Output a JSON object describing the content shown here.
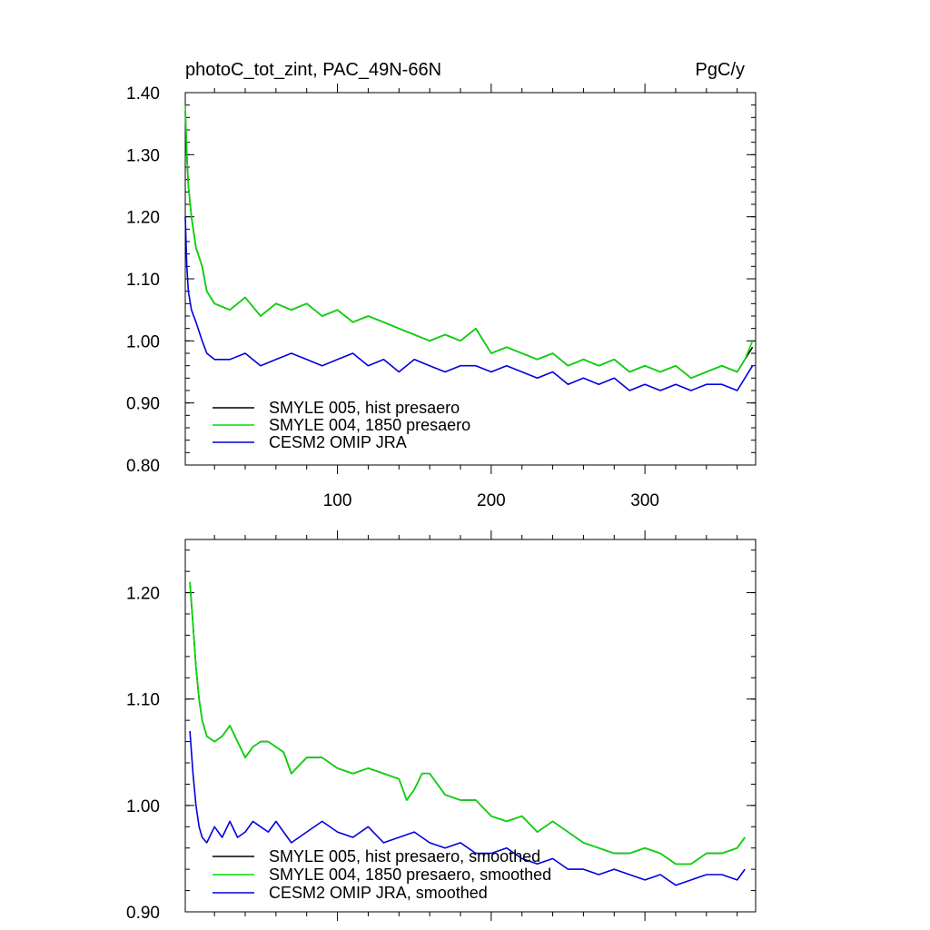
{
  "chart_data": [
    {
      "type": "line",
      "title_left": "photoC_tot_zint, PAC_49N-66N",
      "title_right": "PgC/y",
      "xlabel": "",
      "ylabel": "",
      "xlim": [
        1,
        372
      ],
      "ylim": [
        0.8,
        1.4
      ],
      "xticks": [
        100,
        200,
        300
      ],
      "xtick_labels": [
        "100",
        "200",
        "300"
      ],
      "yticks": [
        0.8,
        0.9,
        1.0,
        1.1,
        1.2,
        1.3,
        1.4
      ],
      "ytick_labels": [
        "0.80",
        "0.90",
        "1.00",
        "1.10",
        "1.20",
        "1.30",
        "1.40"
      ],
      "grid": false,
      "legend_position": "bottom-left",
      "series": [
        {
          "name": "SMYLE 005, hist presaero",
          "color": "#000000",
          "x": [
            1,
            2,
            3,
            5,
            8,
            12,
            15,
            20,
            30,
            40,
            50,
            60,
            70,
            80,
            90,
            100,
            110,
            120,
            130,
            140,
            150,
            160,
            170,
            180,
            190,
            200,
            210,
            220,
            230,
            240,
            250,
            260,
            270,
            280,
            290,
            300,
            310,
            320,
            330,
            340,
            350,
            360,
            365,
            370
          ],
          "y": [
            1.37,
            1.3,
            1.25,
            1.2,
            1.15,
            1.12,
            1.08,
            1.06,
            1.05,
            1.07,
            1.04,
            1.06,
            1.05,
            1.06,
            1.04,
            1.05,
            1.03,
            1.04,
            1.03,
            1.02,
            1.01,
            1.0,
            1.01,
            1.0,
            1.02,
            0.98,
            0.99,
            0.98,
            0.97,
            0.98,
            0.96,
            0.97,
            0.96,
            0.97,
            0.95,
            0.96,
            0.95,
            0.96,
            0.94,
            0.95,
            0.96,
            0.95,
            0.97,
            0.99
          ]
        },
        {
          "name": "SMYLE 004, 1850 presaero",
          "color": "#00dd00",
          "x": [
            1,
            2,
            3,
            5,
            8,
            12,
            15,
            20,
            30,
            40,
            50,
            60,
            70,
            80,
            90,
            100,
            110,
            120,
            130,
            140,
            150,
            160,
            170,
            180,
            190,
            200,
            210,
            220,
            230,
            240,
            250,
            260,
            270,
            280,
            290,
            300,
            310,
            320,
            330,
            340,
            350,
            360,
            365,
            370
          ],
          "y": [
            1.38,
            1.3,
            1.25,
            1.2,
            1.15,
            1.12,
            1.08,
            1.06,
            1.05,
            1.07,
            1.04,
            1.06,
            1.05,
            1.06,
            1.04,
            1.05,
            1.03,
            1.04,
            1.03,
            1.02,
            1.01,
            1.0,
            1.01,
            1.0,
            1.02,
            0.98,
            0.99,
            0.98,
            0.97,
            0.98,
            0.96,
            0.97,
            0.96,
            0.97,
            0.95,
            0.96,
            0.95,
            0.96,
            0.94,
            0.95,
            0.96,
            0.95,
            0.97,
            1.0
          ]
        },
        {
          "name": "CESM2 OMIP JRA",
          "color": "#0000dd",
          "x": [
            1,
            2,
            3,
            5,
            8,
            12,
            15,
            20,
            30,
            40,
            50,
            60,
            70,
            80,
            90,
            100,
            110,
            120,
            130,
            140,
            150,
            160,
            170,
            180,
            190,
            200,
            210,
            220,
            230,
            240,
            250,
            260,
            270,
            280,
            290,
            300,
            310,
            320,
            330,
            340,
            350,
            360,
            365,
            370
          ],
          "y": [
            1.2,
            1.12,
            1.08,
            1.05,
            1.03,
            1.0,
            0.98,
            0.97,
            0.97,
            0.98,
            0.96,
            0.97,
            0.98,
            0.97,
            0.96,
            0.97,
            0.98,
            0.96,
            0.97,
            0.95,
            0.97,
            0.96,
            0.95,
            0.96,
            0.96,
            0.95,
            0.96,
            0.95,
            0.94,
            0.95,
            0.93,
            0.94,
            0.93,
            0.94,
            0.92,
            0.93,
            0.92,
            0.93,
            0.92,
            0.93,
            0.93,
            0.92,
            0.94,
            0.96
          ]
        }
      ]
    },
    {
      "type": "line",
      "xlabel": "",
      "ylabel": "",
      "xlim": [
        1,
        372
      ],
      "ylim": [
        0.9,
        1.25
      ],
      "xticks": [
        100,
        200,
        300
      ],
      "xtick_labels": [],
      "yticks": [
        0.9,
        1.0,
        1.1,
        1.2
      ],
      "ytick_labels": [
        "0.90",
        "1.00",
        "1.10",
        "1.20"
      ],
      "grid": false,
      "legend_position": "bottom-left",
      "series": [
        {
          "name": "SMYLE 005, hist presaero, smoothed",
          "color": "#000000",
          "x": [
            4,
            6,
            8,
            10,
            12,
            15,
            20,
            25,
            30,
            35,
            40,
            45,
            50,
            55,
            60,
            65,
            70,
            80,
            90,
            100,
            110,
            120,
            130,
            140,
            145,
            150,
            155,
            160,
            170,
            180,
            190,
            200,
            210,
            220,
            230,
            240,
            250,
            260,
            270,
            280,
            290,
            300,
            310,
            320,
            330,
            340,
            350,
            360,
            365
          ],
          "y": [
            1.21,
            1.17,
            1.13,
            1.1,
            1.08,
            1.065,
            1.06,
            1.065,
            1.075,
            1.06,
            1.045,
            1.055,
            1.06,
            1.06,
            1.055,
            1.05,
            1.03,
            1.045,
            1.045,
            1.035,
            1.03,
            1.035,
            1.03,
            1.025,
            1.005,
            1.015,
            1.03,
            1.03,
            1.01,
            1.005,
            1.005,
            0.99,
            0.985,
            0.99,
            0.975,
            0.985,
            0.975,
            0.965,
            0.96,
            0.955,
            0.955,
            0.96,
            0.955,
            0.945,
            0.945,
            0.955,
            0.955,
            0.96,
            0.97
          ]
        },
        {
          "name": "SMYLE 004, 1850 presaero, smoothed",
          "color": "#00dd00",
          "x": [
            4,
            6,
            8,
            10,
            12,
            15,
            20,
            25,
            30,
            35,
            40,
            45,
            50,
            55,
            60,
            65,
            70,
            80,
            90,
            100,
            110,
            120,
            130,
            140,
            145,
            150,
            155,
            160,
            170,
            180,
            190,
            200,
            210,
            220,
            230,
            240,
            250,
            260,
            270,
            280,
            290,
            300,
            310,
            320,
            330,
            340,
            350,
            360,
            365
          ],
          "y": [
            1.21,
            1.17,
            1.13,
            1.1,
            1.08,
            1.065,
            1.06,
            1.065,
            1.075,
            1.06,
            1.045,
            1.055,
            1.06,
            1.06,
            1.055,
            1.05,
            1.03,
            1.045,
            1.045,
            1.035,
            1.03,
            1.035,
            1.03,
            1.025,
            1.005,
            1.015,
            1.03,
            1.03,
            1.01,
            1.005,
            1.005,
            0.99,
            0.985,
            0.99,
            0.975,
            0.985,
            0.975,
            0.965,
            0.96,
            0.955,
            0.955,
            0.96,
            0.955,
            0.945,
            0.945,
            0.955,
            0.955,
            0.96,
            0.97
          ]
        },
        {
          "name": "CESM2 OMIP JRA, smoothed",
          "color": "#0000dd",
          "x": [
            4,
            6,
            8,
            10,
            12,
            15,
            20,
            25,
            30,
            35,
            40,
            45,
            50,
            55,
            60,
            65,
            70,
            80,
            90,
            100,
            110,
            120,
            130,
            140,
            150,
            160,
            170,
            180,
            190,
            200,
            210,
            220,
            230,
            240,
            250,
            260,
            270,
            280,
            290,
            300,
            310,
            320,
            330,
            340,
            350,
            360,
            365
          ],
          "y": [
            1.07,
            1.03,
            1.0,
            0.98,
            0.97,
            0.965,
            0.98,
            0.97,
            0.985,
            0.97,
            0.975,
            0.985,
            0.98,
            0.975,
            0.985,
            0.975,
            0.965,
            0.975,
            0.985,
            0.975,
            0.97,
            0.98,
            0.965,
            0.97,
            0.975,
            0.965,
            0.96,
            0.965,
            0.955,
            0.955,
            0.96,
            0.95,
            0.945,
            0.95,
            0.94,
            0.94,
            0.935,
            0.94,
            0.935,
            0.93,
            0.935,
            0.925,
            0.93,
            0.935,
            0.935,
            0.93,
            0.94
          ]
        }
      ]
    }
  ]
}
